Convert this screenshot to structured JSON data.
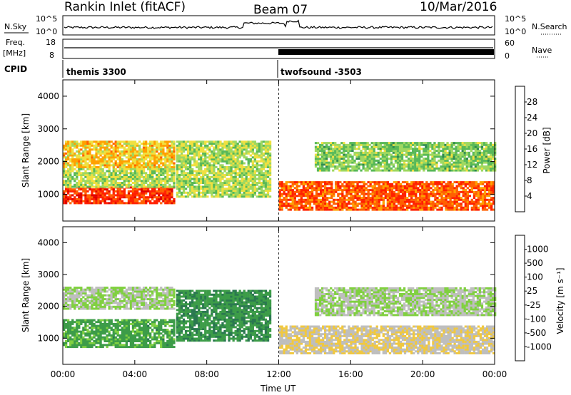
{
  "header": {
    "station": "Rankin Inlet (fitACF)",
    "beam": "Beam 07",
    "date": "10/Mar/2016"
  },
  "top_panels": {
    "nsky_label": "N.Sky",
    "nsky_ticks": [
      "10^5",
      "10^0"
    ],
    "nsearch_label": "N.Search",
    "nsearch_ticks": [
      "10^5",
      "10^0"
    ],
    "freq_label_line1": "Freq.",
    "freq_label_line2": "[MHz]",
    "freq_ticks": [
      "18",
      "8"
    ],
    "nave_label": "Nave",
    "nave_ticks": [
      "60",
      "0"
    ],
    "cpid_label": "CPID",
    "cpid_segments": [
      {
        "name": "themis 3300",
        "start_hour": 0,
        "end_hour": 12
      },
      {
        "name": "twofsound -3503",
        "start_hour": 12,
        "end_hour": 24
      }
    ]
  },
  "colors": {
    "power_scale": [
      "#0000ff",
      "#1e50b4",
      "#2f8a50",
      "#58b858",
      "#9ed860",
      "#f0e040",
      "#ffa000",
      "#ff6000",
      "#ff2000",
      "#e00000"
    ],
    "velocity_scale": [
      "#1030a0",
      "#1c64b8",
      "#2a7850",
      "#3c9c48",
      "#80d040",
      "#bebebe",
      "#f0c840",
      "#f4a020",
      "#f07010",
      "#e02000"
    ]
  },
  "chart_data": [
    {
      "type": "heatmap",
      "panel": "power",
      "ylabel": "Slant Range [km]",
      "xlabel": "",
      "xticks": [
        "00:00",
        "04:00",
        "08:00",
        "12:00",
        "16:00",
        "20:00",
        "00:00"
      ],
      "yticks": [
        "1000",
        "2000",
        "3000",
        "4000"
      ],
      "xlim_hours": [
        0,
        24
      ],
      "ylim_km": [
        180,
        4500
      ],
      "colorbar": {
        "label": "Power [dB]",
        "ticks": [
          "4",
          "8",
          "12",
          "16",
          "20",
          "24",
          "28"
        ],
        "range_db": [
          0,
          30
        ]
      },
      "echo_bands": [
        {
          "t0": 0,
          "t1": 6.2,
          "r0": 700,
          "r1": 1200,
          "value_db": 26
        },
        {
          "t0": 0,
          "t1": 6.2,
          "r0": 1200,
          "r1": 1800,
          "value_db": 14
        },
        {
          "t0": 0,
          "t1": 6.2,
          "r0": 1800,
          "r1": 2600,
          "value_db": 18
        },
        {
          "t0": 6.3,
          "t1": 11.5,
          "r0": 900,
          "r1": 2600,
          "value_db": 14
        },
        {
          "t0": 12,
          "t1": 24,
          "r0": 500,
          "r1": 1400,
          "value_db": 24
        },
        {
          "t0": 14,
          "t1": 24,
          "r0": 1700,
          "r1": 2600,
          "value_db": 12
        }
      ]
    },
    {
      "type": "heatmap",
      "panel": "velocity",
      "ylabel": "Slant Range [km]",
      "xlabel": "Time UT",
      "xticks": [
        "00:00",
        "04:00",
        "08:00",
        "12:00",
        "16:00",
        "20:00",
        "00:00"
      ],
      "yticks": [
        "1000",
        "2000",
        "3000",
        "4000"
      ],
      "xlim_hours": [
        0,
        24
      ],
      "ylim_km": [
        180,
        4500
      ],
      "colorbar": {
        "label": "Velocity [m s⁻¹]",
        "ticks": [
          "1000",
          "500",
          "100",
          "25",
          "-25",
          "-100",
          "-500",
          "-1000"
        ],
        "range_ms": [
          -1000,
          1000
        ]
      },
      "echo_bands": [
        {
          "t0": 0,
          "t1": 6.2,
          "r0": 700,
          "r1": 1600,
          "value_ms": 300
        },
        {
          "t0": 0,
          "t1": 6.2,
          "r0": 1900,
          "r1": 2600,
          "value_ms": 0
        },
        {
          "t0": 6.3,
          "t1": 11.5,
          "r0": 900,
          "r1": 2500,
          "value_ms": 400
        },
        {
          "t0": 12,
          "t1": 24,
          "r0": 500,
          "r1": 1400,
          "value_ms": -200
        },
        {
          "t0": 14,
          "t1": 24,
          "r0": 1700,
          "r1": 2600,
          "value_ms": 0
        }
      ]
    }
  ]
}
